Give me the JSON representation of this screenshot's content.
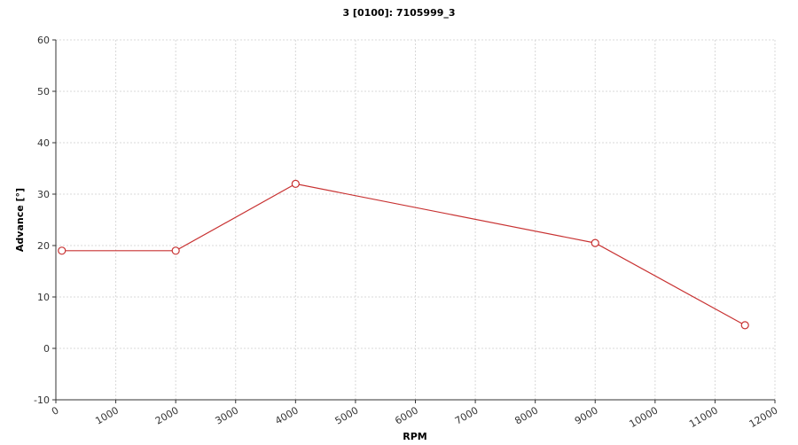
{
  "chart_data": {
    "type": "line",
    "title": "3 [0100]: 7105999_3",
    "x_label": "RPM",
    "y_label": "Advance [°]",
    "x": [
      100,
      2000,
      4000,
      9000,
      11500
    ],
    "series": [
      {
        "name": "7105999_3",
        "color": "#c83232",
        "values": [
          19,
          19,
          32,
          20.5,
          4.5
        ]
      }
    ],
    "xlim": [
      0,
      12000
    ],
    "xticks": [
      0,
      1000,
      2000,
      3000,
      4000,
      5000,
      6000,
      7000,
      8000,
      9000,
      10000,
      11000,
      12000
    ],
    "ylim": [
      -10,
      60
    ],
    "yticks": [
      -10,
      0,
      10,
      20,
      30,
      40,
      50,
      60
    ],
    "grid": true
  }
}
